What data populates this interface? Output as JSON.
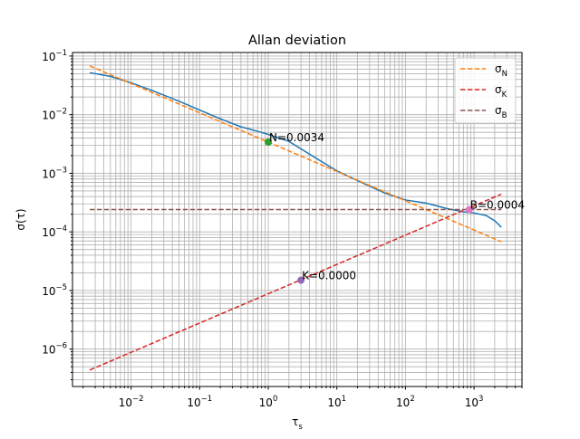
{
  "chart_data": {
    "type": "line",
    "title": "Allan deviation",
    "xlabel": {
      "base": "τ",
      "sub": "s"
    },
    "ylabel": {
      "base": "σ",
      "rest": "(τ)"
    },
    "xscale": "log",
    "yscale": "log",
    "xlim": [
      0.0014,
      5000
    ],
    "ylim": [
      2.3e-07,
      0.115
    ],
    "xticks": [
      0.01,
      0.1,
      1,
      10,
      100,
      1000
    ],
    "xtick_labels": [
      {
        "base": "10",
        "exp": "−2"
      },
      {
        "base": "10",
        "exp": "−1"
      },
      {
        "base": "10",
        "exp": "0"
      },
      {
        "base": "10",
        "exp": "1"
      },
      {
        "base": "10",
        "exp": "2"
      },
      {
        "base": "10",
        "exp": "3"
      }
    ],
    "yticks": [
      1e-06,
      1e-05,
      0.0001,
      0.001,
      0.01,
      0.1
    ],
    "ytick_labels": [
      {
        "base": "10",
        "exp": "−6"
      },
      {
        "base": "10",
        "exp": "−5"
      },
      {
        "base": "10",
        "exp": "−4"
      },
      {
        "base": "10",
        "exp": "−3"
      },
      {
        "base": "10",
        "exp": "−2"
      },
      {
        "base": "10",
        "exp": "−1"
      }
    ],
    "grid": "major and minor",
    "legend_position": "top-right",
    "series": [
      {
        "role": "allan-deviation",
        "color": "#1f77b4",
        "style": "solid",
        "x": [
          0.0025,
          0.005,
          0.01,
          0.02,
          0.05,
          0.1,
          0.2,
          0.4,
          0.7,
          1.0,
          2.0,
          5.0,
          10,
          20,
          50,
          100,
          200,
          400,
          700,
          1000,
          1500,
          2000,
          2500
        ],
        "y": [
          0.052,
          0.045,
          0.035,
          0.026,
          0.017,
          0.012,
          0.0085,
          0.0062,
          0.0052,
          0.0046,
          0.0035,
          0.0018,
          0.0011,
          0.00075,
          0.00046,
          0.00035,
          0.00031,
          0.00025,
          0.00022,
          0.00021,
          0.00019,
          0.000155,
          0.00012
        ]
      },
      {
        "name": {
          "base": "σ",
          "sub": "N"
        },
        "color": "#ff7f0e",
        "style": "dashed",
        "x": [
          0.0025,
          2500
        ],
        "y": [
          0.068,
          6.8e-05
        ]
      },
      {
        "name": {
          "base": "σ",
          "sub": "K"
        },
        "color": "#d62728",
        "style": "dashed",
        "x": [
          0.0025,
          2500
        ],
        "y": [
          4.4e-07,
          0.00044
        ]
      },
      {
        "name": {
          "base": "σ",
          "sub": "B"
        },
        "color": "#8c564b",
        "style": "dashed",
        "x": [
          0.0025,
          2500
        ],
        "y": [
          0.00024,
          0.00024
        ]
      }
    ],
    "markers": [
      {
        "x": 1.0,
        "y": 0.0034,
        "color": "#2ca02c",
        "label": "N=0.0034"
      },
      {
        "x": 3.0,
        "y": 1.5e-05,
        "color": "#9467bd",
        "label": "K=0.0000"
      },
      {
        "x": 850,
        "y": 0.00024,
        "color": "#e377c2",
        "label": "B=0.0004"
      }
    ]
  }
}
